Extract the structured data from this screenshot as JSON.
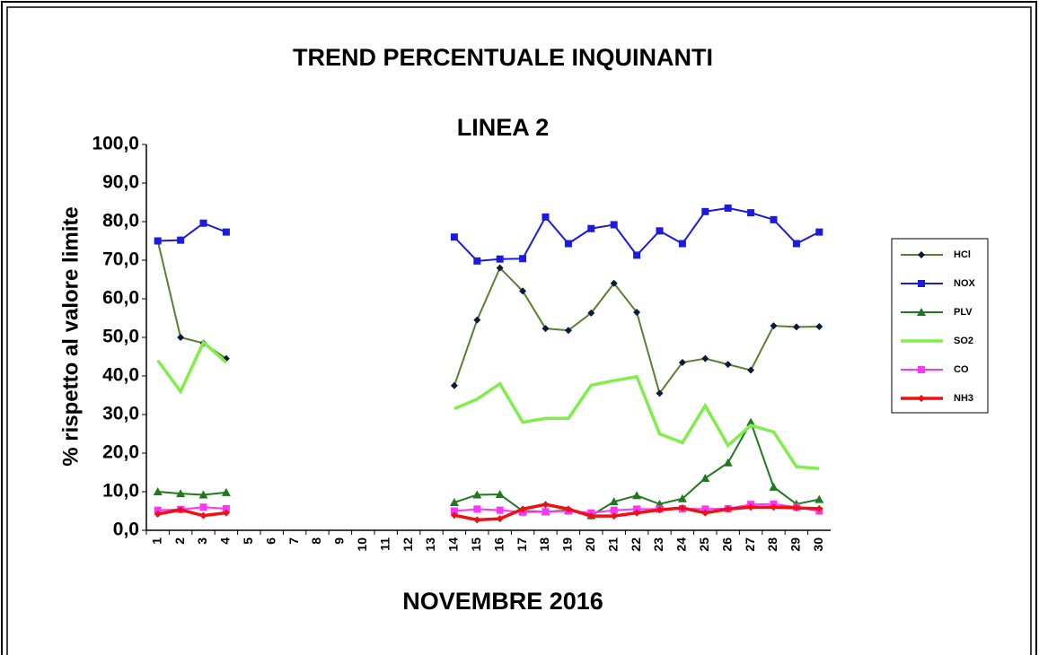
{
  "chart_data": {
    "type": "line",
    "title": "TREND PERCENTUALE INQUINANTI",
    "subtitle": "LINEA 2",
    "x_label": "NOVEMBRE 2016",
    "y_label": "% rispetto al valore limite",
    "categories": [
      "1",
      "2",
      "3",
      "4",
      "5",
      "6",
      "7",
      "8",
      "9",
      "10",
      "11",
      "12",
      "13",
      "14",
      "15",
      "16",
      "17",
      "18",
      "19",
      "20",
      "21",
      "22",
      "23",
      "24",
      "25",
      "26",
      "27",
      "28",
      "29",
      "30"
    ],
    "ylim": [
      0,
      100
    ],
    "yticks": [
      {
        "value": 0,
        "label": "0,0"
      },
      {
        "value": 10,
        "label": "10,0"
      },
      {
        "value": 20,
        "label": "20,0"
      },
      {
        "value": 30,
        "label": "30,0"
      },
      {
        "value": 40,
        "label": "40,0"
      },
      {
        "value": 50,
        "label": "50,0"
      },
      {
        "value": 60,
        "label": "60,0"
      },
      {
        "value": 70,
        "label": "70,0"
      },
      {
        "value": 80,
        "label": "80,0"
      },
      {
        "value": 90,
        "label": "90,0"
      },
      {
        "value": 100,
        "label": "100,0"
      }
    ],
    "grid": false,
    "legend": "right",
    "series": [
      {
        "name": "HCl",
        "color": "#5b7f2e",
        "marker": "diamond",
        "values": [
          75,
          50,
          48.5,
          44.5,
          null,
          null,
          null,
          null,
          null,
          null,
          null,
          null,
          null,
          37.5,
          54.5,
          68,
          62,
          52.3,
          51.8,
          56.3,
          64,
          56.5,
          35.5,
          43.5,
          44.5,
          43,
          41.5,
          53,
          52.7,
          52.8
        ]
      },
      {
        "name": "NOX",
        "color": "#1a1ae0",
        "marker": "square",
        "values": [
          75,
          75.2,
          79.6,
          77.3,
          null,
          null,
          null,
          null,
          null,
          null,
          null,
          null,
          null,
          76,
          69.8,
          70.3,
          70.4,
          81.2,
          74.3,
          78.2,
          79.2,
          71.3,
          77.6,
          74.3,
          82.6,
          83.5,
          82.3,
          80.5,
          74.3,
          77.3
        ]
      },
      {
        "name": "PLV",
        "color": "#1f7a1f",
        "marker": "triangle",
        "values": [
          10,
          9.5,
          9.2,
          9.8,
          null,
          null,
          null,
          null,
          null,
          null,
          null,
          null,
          null,
          7.2,
          9.2,
          9.3,
          5,
          4.8,
          5.2,
          3.8,
          7.4,
          9,
          6.8,
          8.2,
          13.5,
          17.5,
          28,
          11.2,
          6.8,
          8
        ]
      },
      {
        "name": "SO2",
        "color": "#80ee4a",
        "marker": "none",
        "values": [
          44,
          36,
          48.7,
          43.5,
          null,
          null,
          null,
          null,
          null,
          null,
          null,
          null,
          null,
          31.5,
          34,
          38,
          28,
          29,
          29,
          37.6,
          38.8,
          39.8,
          25,
          22.7,
          32.3,
          22,
          27.2,
          25.5,
          16.5,
          16
        ]
      },
      {
        "name": "CO",
        "color": "#ff33ff",
        "marker": "square",
        "values": [
          5.2,
          5.4,
          6,
          5.6,
          null,
          null,
          null,
          null,
          null,
          null,
          null,
          null,
          null,
          5,
          5.5,
          5.2,
          4.7,
          4.8,
          5,
          4.5,
          5.2,
          5.5,
          5.5,
          5.6,
          5.5,
          5.6,
          6.7,
          6.8,
          6,
          5
        ]
      },
      {
        "name": "NH3",
        "color": "#ee1111",
        "marker": "diamond",
        "values": [
          4.2,
          5.3,
          3.8,
          4.5,
          null,
          null,
          null,
          null,
          null,
          null,
          null,
          null,
          null,
          3.9,
          2.7,
          3,
          5.5,
          6.7,
          5.5,
          3.7,
          3.7,
          4.5,
          5.3,
          5.8,
          4.5,
          5.5,
          6,
          6,
          5.8,
          5.6
        ]
      }
    ]
  }
}
